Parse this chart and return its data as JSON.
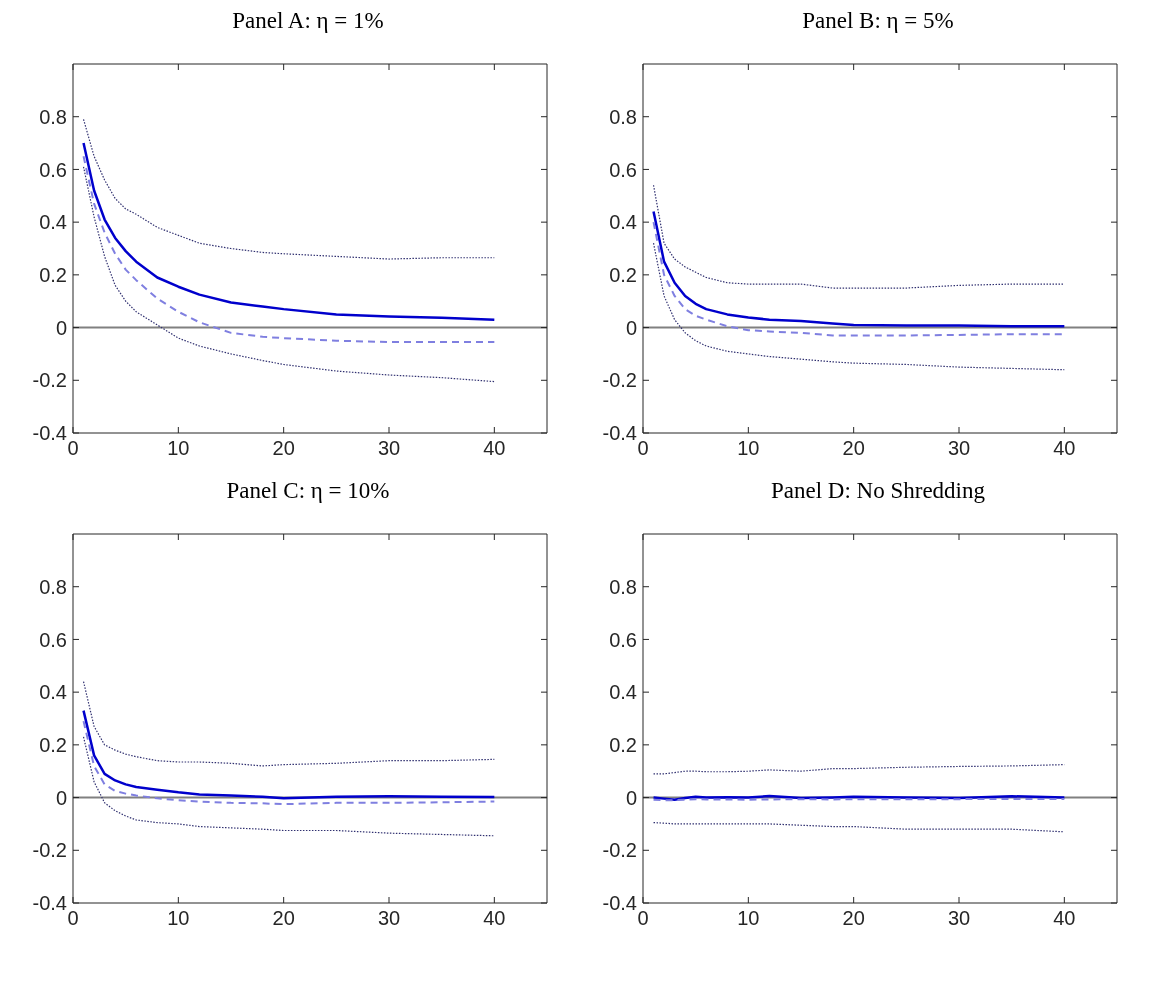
{
  "chart_data": [
    {
      "type": "line",
      "title": "Panel A: η = 1%",
      "x": [
        1,
        2,
        3,
        4,
        5,
        6,
        8,
        10,
        12,
        15,
        18,
        20,
        25,
        30,
        35,
        40
      ],
      "xlim": [
        0,
        45
      ],
      "xticks": [
        0,
        10,
        20,
        30,
        40
      ],
      "ylim": [
        -0.4,
        1
      ],
      "yticks": [
        -0.4,
        -0.2,
        0,
        0.2,
        0.4,
        0.6,
        0.8
      ],
      "grid": false,
      "ref_lines": [
        {
          "axis": "y",
          "value": 0,
          "color": "#808080"
        }
      ],
      "series": [
        {
          "color": "#0000cc",
          "line_style": "solid",
          "values": [
            0.7,
            0.52,
            0.41,
            0.34,
            0.29,
            0.25,
            0.19,
            0.155,
            0.125,
            0.095,
            0.08,
            0.07,
            0.05,
            0.042,
            0.037,
            0.03
          ]
        },
        {
          "color": "#7f7fe0",
          "line_style": "dashed",
          "values": [
            0.65,
            0.47,
            0.36,
            0.28,
            0.22,
            0.18,
            0.11,
            0.06,
            0.02,
            -0.02,
            -0.035,
            -0.04,
            -0.05,
            -0.055,
            -0.055,
            -0.055
          ]
        },
        {
          "color": "#303070",
          "line_style": "dotted",
          "values": [
            0.79,
            0.65,
            0.56,
            0.49,
            0.45,
            0.43,
            0.38,
            0.35,
            0.32,
            0.3,
            0.285,
            0.28,
            0.27,
            0.26,
            0.265,
            0.265
          ]
        },
        {
          "color": "#303070",
          "line_style": "dotted",
          "values": [
            0.61,
            0.42,
            0.27,
            0.16,
            0.1,
            0.06,
            0.01,
            -0.04,
            -0.07,
            -0.1,
            -0.125,
            -0.14,
            -0.165,
            -0.18,
            -0.19,
            -0.205
          ]
        }
      ]
    },
    {
      "type": "line",
      "title": "Panel B: η = 5%",
      "x": [
        1,
        2,
        3,
        4,
        5,
        6,
        8,
        10,
        12,
        15,
        18,
        20,
        25,
        30,
        35,
        40
      ],
      "xlim": [
        0,
        45
      ],
      "xticks": [
        0,
        10,
        20,
        30,
        40
      ],
      "ylim": [
        -0.4,
        1
      ],
      "yticks": [
        -0.4,
        -0.2,
        0,
        0.2,
        0.4,
        0.6,
        0.8
      ],
      "grid": false,
      "ref_lines": [
        {
          "axis": "y",
          "value": 0,
          "color": "#808080"
        }
      ],
      "series": [
        {
          "color": "#0000cc",
          "line_style": "solid",
          "values": [
            0.44,
            0.25,
            0.17,
            0.12,
            0.09,
            0.07,
            0.05,
            0.038,
            0.03,
            0.025,
            0.015,
            0.01,
            0.008,
            0.008,
            0.005,
            0.005
          ]
        },
        {
          "color": "#7f7fe0",
          "line_style": "dashed",
          "values": [
            0.4,
            0.2,
            0.12,
            0.07,
            0.045,
            0.03,
            0.005,
            -0.01,
            -0.015,
            -0.02,
            -0.03,
            -0.03,
            -0.03,
            -0.028,
            -0.025,
            -0.025
          ]
        },
        {
          "color": "#303070",
          "line_style": "dotted",
          "values": [
            0.54,
            0.32,
            0.26,
            0.23,
            0.21,
            0.19,
            0.17,
            0.165,
            0.165,
            0.165,
            0.15,
            0.15,
            0.15,
            0.16,
            0.165,
            0.165
          ]
        },
        {
          "color": "#303070",
          "line_style": "dotted",
          "values": [
            0.32,
            0.12,
            0.03,
            -0.02,
            -0.05,
            -0.07,
            -0.09,
            -0.1,
            -0.11,
            -0.12,
            -0.13,
            -0.135,
            -0.14,
            -0.15,
            -0.155,
            -0.16
          ]
        }
      ]
    },
    {
      "type": "line",
      "title": "Panel C: η = 10%",
      "x": [
        1,
        2,
        3,
        4,
        5,
        6,
        8,
        10,
        12,
        15,
        18,
        20,
        25,
        30,
        35,
        40
      ],
      "xlim": [
        0,
        45
      ],
      "xticks": [
        0,
        10,
        20,
        30,
        40
      ],
      "ylim": [
        -0.4,
        1
      ],
      "yticks": [
        -0.4,
        -0.2,
        0,
        0.2,
        0.4,
        0.6,
        0.8
      ],
      "grid": false,
      "ref_lines": [
        {
          "axis": "y",
          "value": 0,
          "color": "#808080"
        }
      ],
      "series": [
        {
          "color": "#0000cc",
          "line_style": "solid",
          "values": [
            0.33,
            0.16,
            0.09,
            0.065,
            0.05,
            0.04,
            0.03,
            0.02,
            0.012,
            0.008,
            0.003,
            -0.003,
            0.003,
            0.005,
            0.003,
            0.002
          ]
        },
        {
          "color": "#7f7fe0",
          "line_style": "dashed",
          "values": [
            0.29,
            0.12,
            0.05,
            0.025,
            0.015,
            0.008,
            -0.003,
            -0.01,
            -0.015,
            -0.02,
            -0.022,
            -0.025,
            -0.02,
            -0.02,
            -0.018,
            -0.015
          ]
        },
        {
          "color": "#303070",
          "line_style": "dotted",
          "values": [
            0.44,
            0.27,
            0.2,
            0.18,
            0.165,
            0.155,
            0.14,
            0.135,
            0.135,
            0.13,
            0.12,
            0.125,
            0.13,
            0.14,
            0.14,
            0.145
          ]
        },
        {
          "color": "#303070",
          "line_style": "dotted",
          "values": [
            0.23,
            0.06,
            -0.02,
            -0.05,
            -0.07,
            -0.085,
            -0.095,
            -0.1,
            -0.11,
            -0.115,
            -0.12,
            -0.125,
            -0.125,
            -0.135,
            -0.14,
            -0.145
          ]
        }
      ]
    },
    {
      "type": "line",
      "title": "Panel D: No Shredding",
      "x": [
        1,
        2,
        3,
        4,
        5,
        6,
        8,
        10,
        12,
        15,
        18,
        20,
        25,
        30,
        35,
        40
      ],
      "xlim": [
        0,
        45
      ],
      "xticks": [
        0,
        10,
        20,
        30,
        40
      ],
      "ylim": [
        -0.4,
        1
      ],
      "yticks": [
        -0.4,
        -0.2,
        0,
        0.2,
        0.4,
        0.6,
        0.8
      ],
      "grid": false,
      "ref_lines": [
        {
          "axis": "y",
          "value": 0,
          "color": "#808080"
        }
      ],
      "series": [
        {
          "color": "#0000cc",
          "line_style": "solid",
          "values": [
            0,
            -0.004,
            -0.008,
            -0.002,
            0.003,
            0,
            0.001,
            0,
            0.006,
            -0.002,
            0,
            0.003,
            0,
            -0.002,
            0.005,
            0
          ]
        },
        {
          "color": "#7f7fe0",
          "line_style": "dashed",
          "values": [
            -0.008,
            -0.01,
            -0.01,
            -0.008,
            -0.006,
            -0.007,
            -0.007,
            -0.008,
            -0.007,
            -0.006,
            -0.007,
            -0.006,
            -0.006,
            -0.006,
            -0.005,
            -0.005
          ]
        },
        {
          "color": "#303070",
          "line_style": "dotted",
          "values": [
            0.09,
            0.09,
            0.095,
            0.1,
            0.1,
            0.098,
            0.098,
            0.1,
            0.105,
            0.1,
            0.11,
            0.11,
            0.115,
            0.118,
            0.12,
            0.125
          ]
        },
        {
          "color": "#303070",
          "line_style": "dotted",
          "values": [
            -0.095,
            -0.097,
            -0.1,
            -0.1,
            -0.1,
            -0.1,
            -0.1,
            -0.1,
            -0.1,
            -0.105,
            -0.11,
            -0.11,
            -0.12,
            -0.12,
            -0.12,
            -0.13
          ]
        }
      ]
    }
  ]
}
